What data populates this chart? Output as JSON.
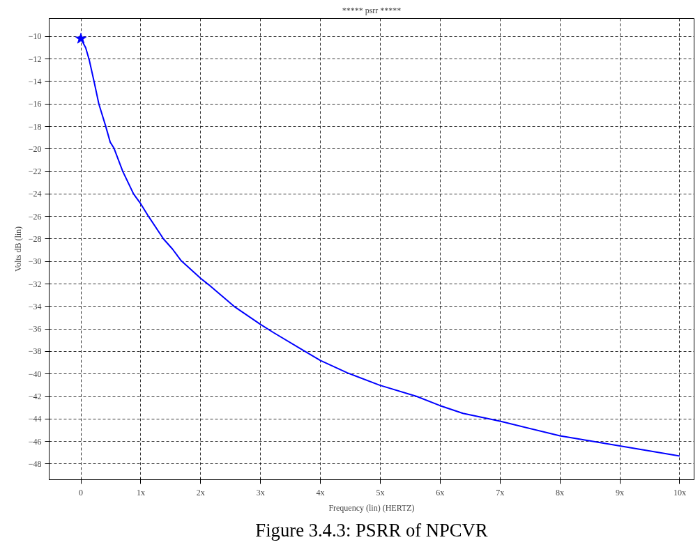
{
  "chart_data": {
    "type": "line",
    "title": "***** psrr *****",
    "xlabel": "Frequency (lin) (HERTZ)",
    "ylabel": "Volts dB (lin)",
    "annotations": [
      "Figure 3.4.3: PSRR of NPCVR"
    ],
    "xlim": [
      -0.53,
      10.24
    ],
    "ylim": [
      -49.4,
      -8.4
    ],
    "xticks": [
      0,
      {
        "value": 1,
        "label": "1x"
      },
      {
        "value": 2,
        "label": "2x"
      },
      {
        "value": 3,
        "label": "3x"
      },
      {
        "value": 4,
        "label": "4x"
      },
      {
        "value": 5,
        "label": "5x"
      },
      {
        "value": 6,
        "label": "6x"
      },
      {
        "value": 7,
        "label": "7x"
      },
      {
        "value": 8,
        "label": "8x"
      },
      {
        "value": 9,
        "label": "9x"
      },
      {
        "value": 10,
        "label": "10x"
      }
    ],
    "yticks": [
      -10,
      -12,
      -14,
      -16,
      -18,
      -20,
      -22,
      -24,
      -26,
      -28,
      -30,
      -32,
      -34,
      -36,
      -38,
      -40,
      -42,
      -44,
      -46,
      -48
    ],
    "grid": true,
    "line_style": "solid",
    "series": [
      {
        "color": "#0000ff",
        "marker": "none",
        "x": [
          0,
          0.08,
          0.14,
          0.22,
          0.3,
          0.41,
          0.49,
          0.55,
          0.7,
          0.88,
          0.99,
          1.13,
          1.38,
          1.53,
          1.67,
          2.0,
          2.13,
          2.56,
          3.0,
          3.21,
          3.68,
          4.0,
          4.45,
          4.99,
          5.61,
          5.99,
          6.38,
          7.0,
          8.0,
          9.0,
          10.0
        ],
        "values": [
          -10.2,
          -11.0,
          -12.1,
          -14.0,
          -16.0,
          -17.9,
          -19.4,
          -19.9,
          -22.0,
          -24.0,
          -24.8,
          -26.0,
          -28.0,
          -28.9,
          -29.9,
          -31.5,
          -32.05,
          -34.0,
          -35.6,
          -36.3,
          -37.8,
          -38.8,
          -39.9,
          -41.0,
          -42.0,
          -42.8,
          -43.5,
          -44.2,
          -45.5,
          -46.4,
          -47.3
        ]
      },
      {
        "type": "scatter",
        "color": "#0000ff",
        "marker": "star",
        "x": [
          0
        ],
        "values": [
          -10.2
        ]
      }
    ]
  }
}
